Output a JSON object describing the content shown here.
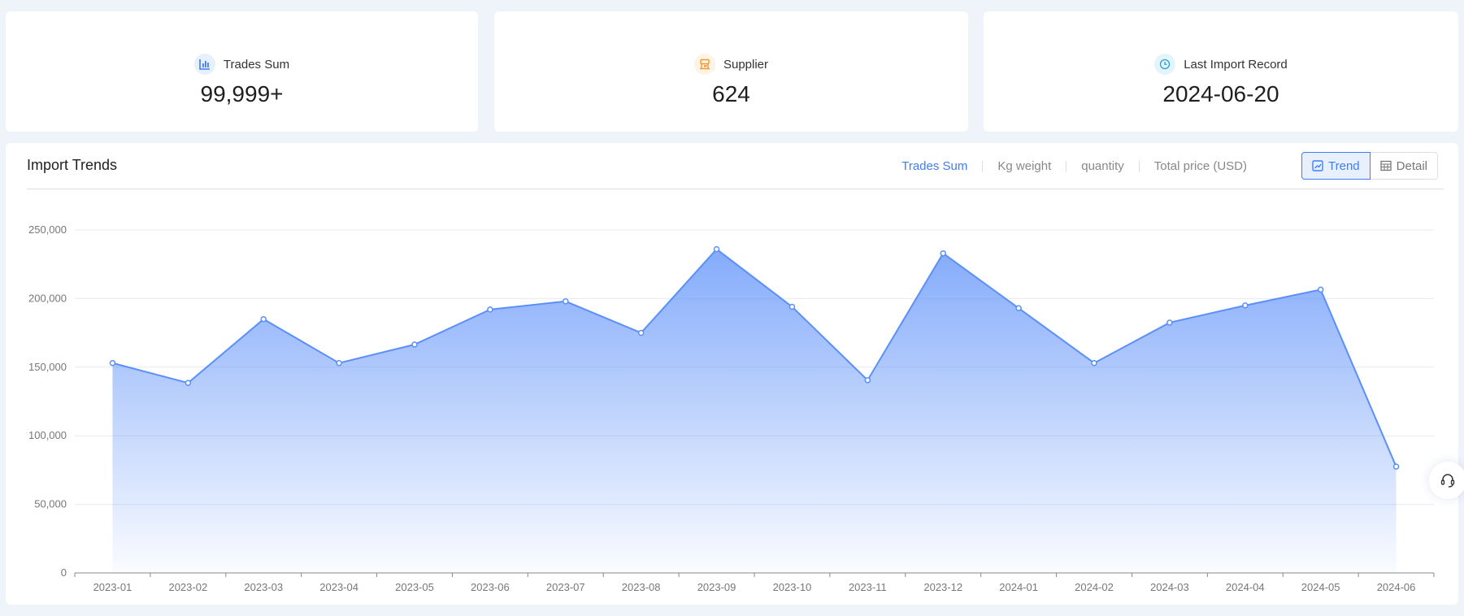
{
  "stats": [
    {
      "label": "Trades Sum",
      "value": "99,999+",
      "icon": "bar-chart-icon",
      "icon_color": "#3d7ef5",
      "icon_bg": "#e8effd"
    },
    {
      "label": "Supplier",
      "value": "624",
      "icon": "store-icon",
      "icon_color": "#f29a2e",
      "icon_bg": "#fdf3e6"
    },
    {
      "label": "Last Import Record",
      "value": "2024-06-20",
      "icon": "clock-icon",
      "icon_color": "#2fa0d8",
      "icon_bg": "#e3f5fb"
    }
  ],
  "panel": {
    "title": "Import Trends",
    "metric_tabs": [
      "Trades Sum",
      "Kg weight",
      "quantity",
      "Total price (USD)"
    ],
    "active_tab": "Trades Sum",
    "view_toggle": {
      "trend": "Trend",
      "detail": "Detail",
      "active": "Trend"
    }
  },
  "chart_data": {
    "type": "area",
    "categories": [
      "2023-01",
      "2023-02",
      "2023-03",
      "2023-04",
      "2023-05",
      "2023-06",
      "2023-07",
      "2023-08",
      "2023-09",
      "2023-10",
      "2023-11",
      "2023-12",
      "2024-01",
      "2024-02",
      "2024-03",
      "2024-04",
      "2024-05",
      "2024-06"
    ],
    "values": [
      153000,
      138500,
      185000,
      153000,
      166500,
      192000,
      198000,
      175000,
      236000,
      194000,
      140500,
      233000,
      193000,
      153000,
      182500,
      195000,
      206500,
      77500
    ],
    "yticks": [
      "0",
      "50,000",
      "100,000",
      "150,000",
      "200,000",
      "250,000"
    ],
    "ylim": [
      0,
      250000
    ],
    "grid": true,
    "color": "#5b8ff9"
  }
}
